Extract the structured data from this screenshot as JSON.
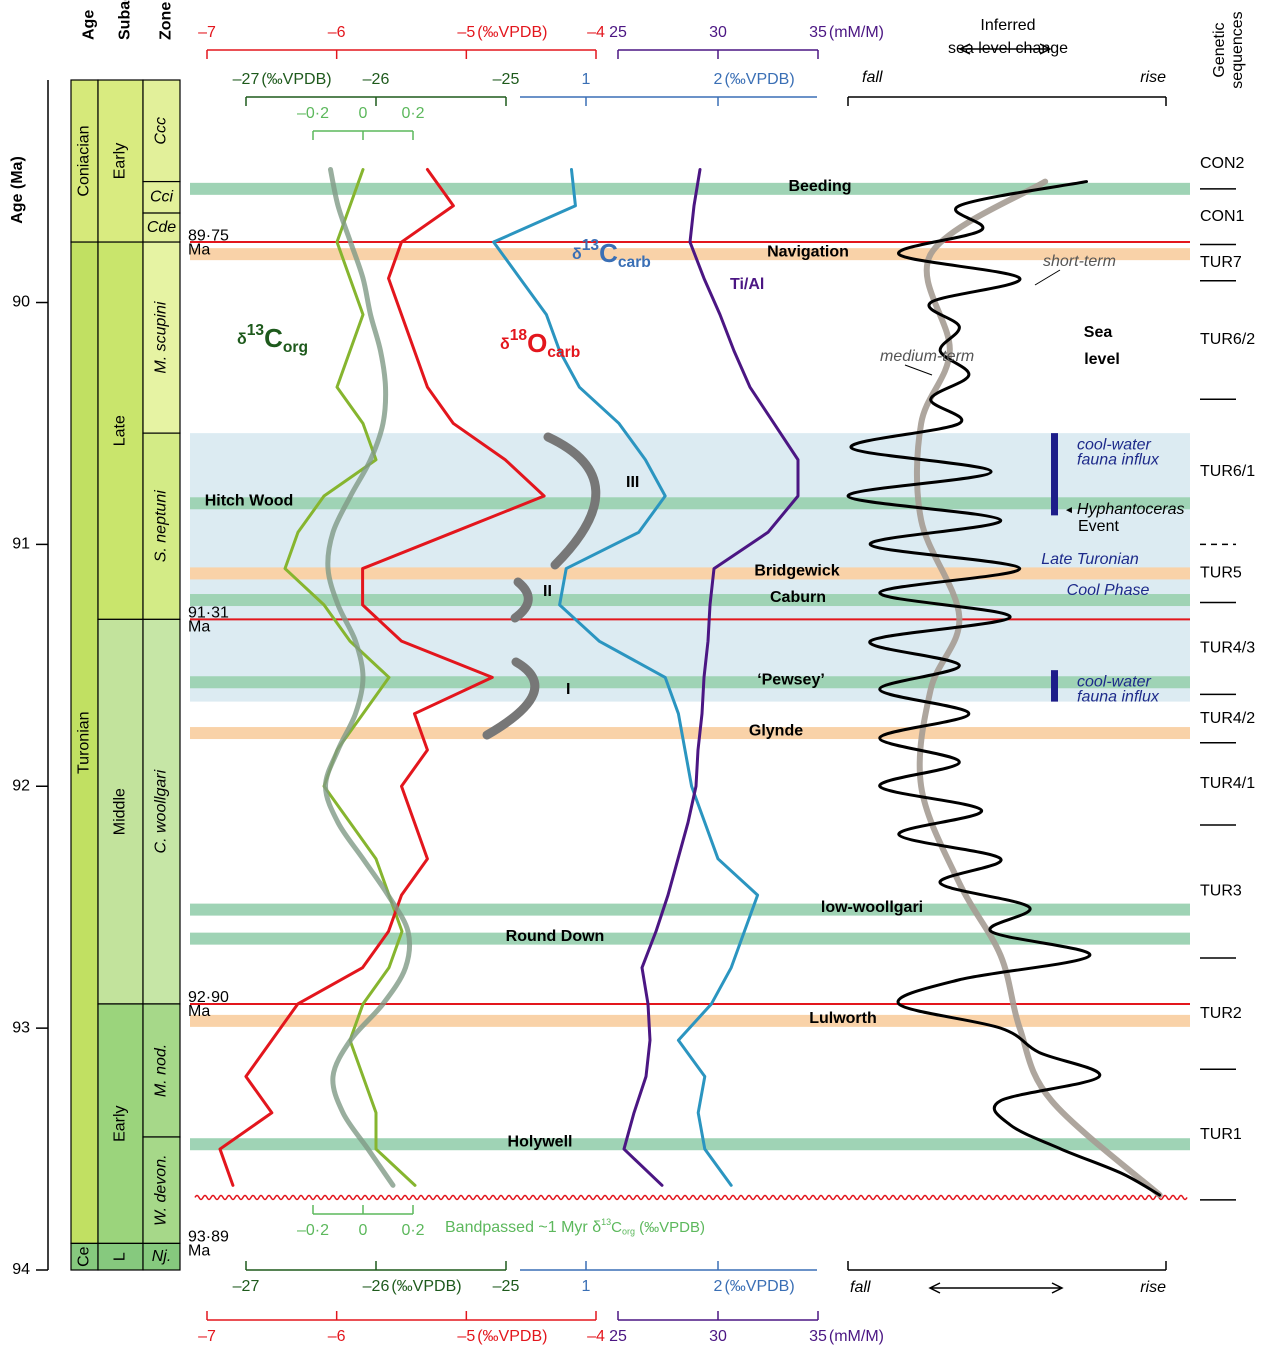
{
  "chart_data": {
    "type": "stratigraphic-profile",
    "y_title": "Age (Ma)",
    "ylim": [
      89.08,
      94
    ],
    "yticks": [
      90,
      91,
      92,
      93,
      94
    ],
    "column_titles": [
      "Age",
      "Subage",
      "Zone"
    ],
    "stages": [
      {
        "name": "Coniacian",
        "from": 89.08,
        "to": 89.75,
        "color": "#d6e97a"
      },
      {
        "name": "Turonian",
        "from": 89.75,
        "to": 93.89,
        "color": "#c1e062"
      },
      {
        "name": "Ce",
        "from": 93.89,
        "to": 94,
        "color": "#86c97e"
      }
    ],
    "substages": [
      {
        "name": "Early",
        "from": 89.08,
        "to": 89.75,
        "color": "#d9eb80"
      },
      {
        "name": "Late",
        "from": 89.75,
        "to": 91.31,
        "color": "#c9e56c"
      },
      {
        "name": "Middle",
        "from": 91.31,
        "to": 92.9,
        "color": "#c2e39c"
      },
      {
        "name": "Early",
        "from": 92.9,
        "to": 93.89,
        "color": "#9bd47c"
      },
      {
        "name": "L",
        "from": 93.89,
        "to": 94,
        "color": "#86c97e"
      }
    ],
    "zones": [
      {
        "name": "Ccc",
        "from": 89.08,
        "to": 89.5,
        "color": "#e2f09a"
      },
      {
        "name": "Cci",
        "from": 89.5,
        "to": 89.63,
        "color": "#e2f09a"
      },
      {
        "name": "Cde",
        "from": 89.63,
        "to": 89.75,
        "color": "#e2f09a"
      },
      {
        "name": "M. scupini",
        "from": 89.75,
        "to": 90.54,
        "color": "#e6f3a3"
      },
      {
        "name": "S. neptuni",
        "from": 90.54,
        "to": 91.31,
        "color": "#d3eb86"
      },
      {
        "name": "C. woollgari",
        "from": 91.31,
        "to": 92.9,
        "color": "#c6e6a6"
      },
      {
        "name": "M. nod.",
        "from": 92.9,
        "to": 93.45,
        "color": "#a6d889"
      },
      {
        "name": "W. devon.",
        "from": 93.45,
        "to": 93.89,
        "color": "#a6d889"
      },
      {
        "name": "Nj.",
        "from": 93.89,
        "to": 94,
        "color": "#86c97e"
      }
    ],
    "ages": [
      89.45,
      89.6,
      89.75,
      89.9,
      90.05,
      90.2,
      90.35,
      90.5,
      90.65,
      90.8,
      90.95,
      91.1,
      91.25,
      91.4,
      91.55,
      91.7,
      91.85,
      92.0,
      92.15,
      92.3,
      92.45,
      92.6,
      92.75,
      92.9,
      93.05,
      93.2,
      93.35,
      93.5,
      93.65
    ],
    "series": [
      {
        "name": [
          "δ",
          "13",
          "C",
          "org"
        ],
        "color": "#86b52f",
        "axis_color": "#1e5a1c",
        "xlim": [
          -27,
          -25
        ],
        "xticks": [
          {
            "value": -27,
            "label": "–27"
          },
          {
            "value": -26,
            "label": "–26"
          },
          {
            "value": -25,
            "label": "–25"
          }
        ],
        "unit": "(‰VPDB)",
        "values": [
          -26.1,
          -26.2,
          -26.3,
          -26.2,
          -26.1,
          -26.2,
          -26.3,
          -26.1,
          -26.0,
          -26.4,
          -26.6,
          -26.7,
          -26.4,
          -26.2,
          -25.9,
          -26.1,
          -26.3,
          -26.4,
          -26.2,
          -26.0,
          -25.9,
          -25.8,
          -25.9,
          -26.1,
          -26.2,
          -26.1,
          -26.0,
          -26.0,
          -25.7
        ]
      },
      {
        "name": [
          "δ",
          "18",
          "O",
          "carb"
        ],
        "color": "#e3161d",
        "axis_color": "#e3161d",
        "xlim": [
          -7,
          -4
        ],
        "xticks": [
          {
            "value": -7,
            "label": "–7"
          },
          {
            "value": -6,
            "label": "–6"
          },
          {
            "value": -5,
            "label": "–5"
          },
          {
            "value": -4,
            "label": "–4"
          }
        ],
        "unit": "(‰VPDB)",
        "values": [
          -5.3,
          -5.1,
          -5.5,
          -5.6,
          -5.5,
          -5.4,
          -5.3,
          -5.1,
          -4.7,
          -4.4,
          -5.1,
          -5.8,
          -5.8,
          -5.5,
          -4.8,
          -5.4,
          -5.3,
          -5.5,
          -5.4,
          -5.3,
          -5.5,
          -5.6,
          -5.8,
          -6.3,
          -6.5,
          -6.7,
          -6.5,
          -6.9,
          -6.8
        ]
      },
      {
        "name": [
          "δ",
          "13",
          "C",
          "carb"
        ],
        "color": "#2b95c0",
        "axis_color": "#3a6fb5",
        "xlim": [
          0.5,
          2.75
        ],
        "xticks": [
          1,
          2
        ],
        "unit": "(‰VPDB)",
        "values": [
          0.89,
          0.92,
          0.3,
          0.5,
          0.7,
          0.8,
          0.95,
          1.25,
          1.45,
          1.6,
          1.4,
          0.85,
          0.8,
          1.1,
          1.6,
          1.7,
          1.75,
          1.8,
          1.9,
          2.0,
          2.3,
          2.2,
          2.1,
          1.95,
          1.7,
          1.9,
          1.85,
          1.9,
          2.1
        ]
      },
      {
        "name": [
          "Ti/Al"
        ],
        "color": "#4b1683",
        "axis_color": "#4b1683",
        "xlim": [
          25,
          35
        ],
        "xticks": [
          25,
          30,
          35
        ],
        "unit": "(mM/M)",
        "values": [
          29.1,
          28.8,
          28.6,
          29.3,
          30.1,
          30.8,
          31.6,
          32.8,
          34.0,
          34.0,
          32.5,
          29.8,
          29.6,
          29.5,
          29.3,
          29.2,
          29.0,
          28.9,
          28.5,
          28.0,
          27.5,
          26.9,
          26.2,
          26.5,
          26.6,
          26.4,
          25.8,
          25.3,
          27.2
        ]
      },
      {
        "name": [
          "Bandpassed ~1 Myr δ",
          "13",
          "C",
          "org",
          " (‰VPDB)"
        ],
        "color": "#7f9a86",
        "axis_color": "#5cb85c",
        "xlim": [
          -0.2,
          0.2
        ],
        "xticks": [
          {
            "value": -0.2,
            "label": "–0·2"
          },
          0,
          {
            "value": 0.2,
            "label": "0·2"
          }
        ],
        "values": [
          -0.13,
          -0.1,
          -0.05,
          0,
          0.03,
          0.07,
          0.09,
          0.08,
          0.03,
          -0.05,
          -0.12,
          -0.14,
          -0.1,
          -0.03,
          0,
          -0.03,
          -0.1,
          -0.15,
          -0.1,
          0,
          0.1,
          0.18,
          0.17,
          0.08,
          -0.05,
          -0.12,
          -0.08,
          0.02,
          0.12
        ]
      },
      {
        "name": [
          "medium-term"
        ],
        "color": "#a59c93",
        "xlim": [
          0,
          1
        ],
        "ages": [
          89.5,
          89.8,
          90.2,
          90.5,
          90.9,
          91.3,
          91.6,
          92.0,
          92.4,
          92.7,
          93.0,
          93.3,
          93.69
        ],
        "values": [
          0.62,
          0.26,
          0.32,
          0.23,
          0.23,
          0.35,
          0.26,
          0.23,
          0.35,
          0.48,
          0.54,
          0.64,
          0.98
        ]
      },
      {
        "name": [
          "short-term"
        ],
        "color": "#000000",
        "xlim": [
          0,
          1
        ],
        "ages": [
          89.5,
          89.6,
          89.7,
          89.8,
          89.9,
          90.0,
          90.1,
          90.2,
          90.3,
          90.4,
          90.5,
          90.6,
          90.7,
          90.8,
          90.9,
          91.0,
          91.1,
          91.2,
          91.3,
          91.4,
          91.5,
          91.6,
          91.7,
          91.8,
          91.9,
          92.0,
          92.1,
          92.2,
          92.3,
          92.4,
          92.5,
          92.6,
          92.7,
          92.8,
          92.9,
          93.0,
          93.1,
          93.2,
          93.3,
          93.4,
          93.5,
          93.6,
          93.69
        ],
        "values": [
          0.75,
          0.35,
          0.42,
          0.16,
          0.54,
          0.26,
          0.35,
          0.29,
          0.38,
          0.26,
          0.35,
          0.01,
          0.45,
          0,
          0.48,
          0.07,
          0.54,
          0.1,
          0.51,
          0.07,
          0.35,
          0.1,
          0.38,
          0.1,
          0.35,
          0.1,
          0.42,
          0.16,
          0.48,
          0.29,
          0.57,
          0.45,
          0.76,
          0.35,
          0.16,
          0.48,
          0.6,
          0.79,
          0.48,
          0.51,
          0.67,
          0.86,
          0.98
        ]
      }
    ],
    "sea_level_axis": {
      "title": [
        "Inferred",
        "sea level change"
      ],
      "ends": [
        "fall",
        "rise"
      ],
      "label": [
        "Sea",
        "level"
      ]
    },
    "events": [
      {
        "name": "Beeding",
        "age": 89.53,
        "color": "#9fd3b5"
      },
      {
        "name": "Navigation",
        "age": 89.8,
        "color": "#f9d2a8"
      },
      {
        "name": "Hitch Wood",
        "age": 90.83,
        "color": "#9fd3b5"
      },
      {
        "name": "Bridgewick",
        "age": 91.12,
        "color": "#f9d2a8"
      },
      {
        "name": "Caburn",
        "age": 91.23,
        "color": "#9fd3b5"
      },
      {
        "name": "‘Pewsey’",
        "age": 91.57,
        "color": "#9fd3b5"
      },
      {
        "name": "Glynde",
        "age": 91.78,
        "color": "#f9d2a8"
      },
      {
        "name": "low-woollgari",
        "age": 92.51,
        "color": "#9fd3b5"
      },
      {
        "name": "Round Down",
        "age": 92.63,
        "color": "#9fd3b5"
      },
      {
        "name": "Lulworth",
        "age": 92.97,
        "color": "#f9d2a8"
      },
      {
        "name": "Holywell",
        "age": 93.48,
        "color": "#9fd3b5"
      }
    ],
    "boundaries": [
      {
        "value": 89.75,
        "label": "89·75"
      },
      {
        "value": 91.31,
        "label": "91·31"
      },
      {
        "value": 92.9,
        "label": "92·90"
      }
    ],
    "base_age": {
      "value": 93.89,
      "label": "93·89"
    },
    "age_unit": "Ma",
    "unconformity_age": 93.7,
    "cool_phase": {
      "label": [
        "Late Turonian",
        "Cool Phase"
      ],
      "from": 90.54,
      "to": 91.65
    },
    "fauna_influx": [
      {
        "label": [
          "cool-water",
          "fauna influx"
        ],
        "from": 90.54,
        "to": 90.88
      },
      {
        "label": [
          "cool-water",
          "fauna influx"
        ],
        "from": 91.52,
        "to": 91.65
      }
    ],
    "hyphantoceras": [
      "◄",
      "Hyphantoceras",
      "Event"
    ],
    "brackets": [
      "III",
      "II",
      "I"
    ],
    "sequences_title": [
      "Genetic",
      "sequences"
    ],
    "sequences": [
      {
        "name": "CON2",
        "base": 89.53
      },
      {
        "name": "CON1",
        "base": 89.76
      },
      {
        "name": "TUR7",
        "base": 89.91
      },
      {
        "name": "TUR6/2",
        "base": 90.4
      },
      {
        "name": "TUR6/1",
        "base": 91.0,
        "dashed": true
      },
      {
        "name": "TUR5",
        "base": 91.24
      },
      {
        "name": "TUR4/3",
        "base": 91.62
      },
      {
        "name": "TUR4/2",
        "base": 91.82
      },
      {
        "name": "TUR4/1",
        "base": 92.16
      },
      {
        "name": "TUR3",
        "base": 92.71
      },
      {
        "name": "TUR2",
        "base": 93.17
      },
      {
        "name": "TUR1",
        "base": 93.71
      }
    ]
  }
}
